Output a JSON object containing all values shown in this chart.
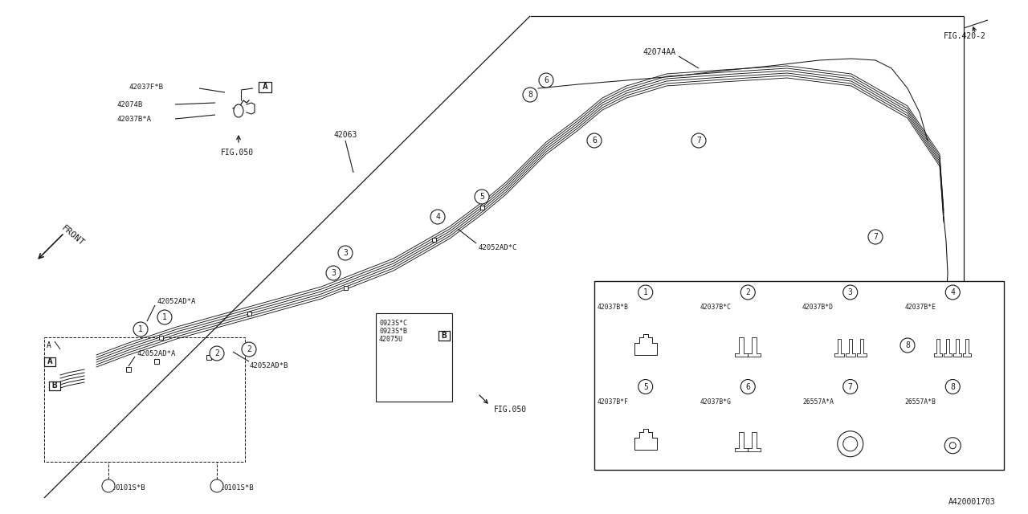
{
  "bg_color": "#ffffff",
  "lc": "#1a1a1a",
  "fig_ref": "A420001703",
  "part_numbers": {
    "main_pipe": "42063",
    "clamp_a": "42052AD*A",
    "clamp_b": "42052AD*B",
    "clamp_c": "42052AD*C",
    "bracket_fa": "42037F*B",
    "bracket_b_a": "42074B",
    "bracket_b_b": "42037B*A",
    "hose_aa": "42074AA",
    "bolt1": "0101S*B",
    "sub_a": "0923S*C",
    "sub_b": "0923S*B",
    "sub_c": "42075U"
  },
  "legend_items": [
    {
      "num": "1",
      "code": "42037B*B"
    },
    {
      "num": "2",
      "code": "42037B*C"
    },
    {
      "num": "3",
      "code": "42037B*D"
    },
    {
      "num": "4",
      "code": "42037B*E"
    },
    {
      "num": "5",
      "code": "42037B*F"
    },
    {
      "num": "6",
      "code": "42037B*G"
    },
    {
      "num": "7",
      "code": "26557A*A"
    },
    {
      "num": "8",
      "code": "26557A*B"
    }
  ],
  "fig050": "FIG.050",
  "fig420": "FIG.420-2",
  "front_label": "FRONT",
  "chassis": {
    "top_outline_x": [
      310,
      390,
      630,
      680,
      750,
      870,
      1010,
      1100,
      1160,
      1190,
      1185,
      1170,
      1140,
      1100,
      960,
      780,
      640,
      520,
      380,
      310
    ],
    "top_outline_y": [
      310,
      265,
      210,
      185,
      165,
      130,
      100,
      80,
      60,
      55,
      70,
      100,
      200,
      310,
      390,
      440,
      435,
      390,
      340,
      310
    ]
  }
}
